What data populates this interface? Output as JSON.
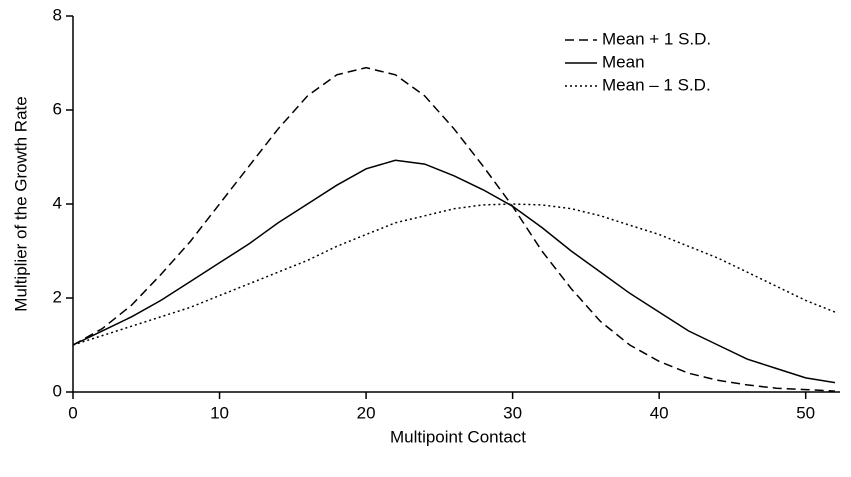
{
  "chart_data": {
    "type": "line",
    "x_label": "Multipoint Contact",
    "y_label": "Multiplier of the Growth Rate",
    "x": [
      0,
      2,
      4,
      6,
      8,
      10,
      12,
      14,
      16,
      18,
      20,
      22,
      24,
      26,
      28,
      30,
      32,
      34,
      36,
      38,
      40,
      42,
      44,
      46,
      48,
      50,
      52
    ],
    "series": [
      {
        "name": "Mean + 1 S.D.",
        "color": "#000000",
        "style": "dashed",
        "values": [
          1.0,
          1.35,
          1.85,
          2.5,
          3.2,
          4.0,
          4.8,
          5.6,
          6.3,
          6.75,
          6.9,
          6.75,
          6.3,
          5.6,
          4.8,
          3.95,
          3.0,
          2.2,
          1.5,
          1.0,
          0.65,
          0.4,
          0.25,
          0.15,
          0.08,
          0.05,
          0.02
        ]
      },
      {
        "name": "Mean",
        "color": "#000000",
        "style": "solid",
        "values": [
          1.0,
          1.3,
          1.6,
          1.95,
          2.35,
          2.75,
          3.15,
          3.6,
          4.0,
          4.4,
          4.75,
          4.93,
          4.85,
          4.6,
          4.3,
          3.95,
          3.5,
          3.0,
          2.55,
          2.1,
          1.7,
          1.3,
          1.0,
          0.7,
          0.5,
          0.3,
          0.2
        ]
      },
      {
        "name": "Mean – 1 S.D.",
        "color": "#000000",
        "style": "dotted",
        "values": [
          1.0,
          1.2,
          1.4,
          1.6,
          1.8,
          2.05,
          2.3,
          2.55,
          2.8,
          3.1,
          3.35,
          3.6,
          3.75,
          3.9,
          3.98,
          4.0,
          3.98,
          3.9,
          3.75,
          3.55,
          3.35,
          3.1,
          2.85,
          2.55,
          2.25,
          1.95,
          1.7
        ]
      }
    ],
    "xlim": [
      0,
      52
    ],
    "ylim": [
      0,
      8
    ],
    "xticks": [
      0,
      10,
      20,
      30,
      40,
      50
    ],
    "yticks": [
      0,
      2,
      4,
      6,
      8
    ],
    "grid": false,
    "legend": "top-right"
  }
}
